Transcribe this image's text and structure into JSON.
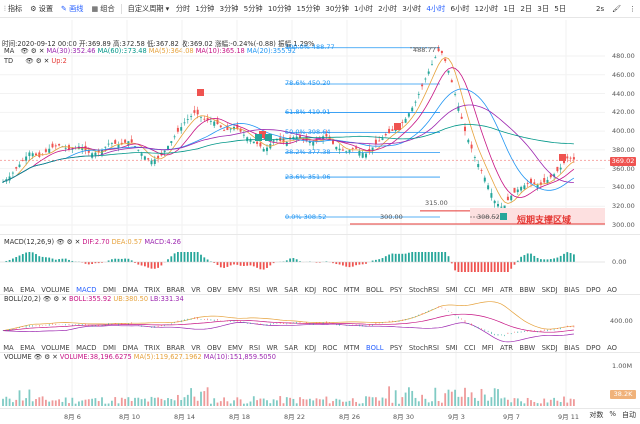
{
  "toolbar": {
    "indicators": "指标",
    "settings": "设置",
    "draw": "画线",
    "combo": "组合",
    "custom_period": "自定义周期",
    "periods": [
      "分时",
      "1分钟",
      "3分钟",
      "5分钟",
      "10分钟",
      "15分钟",
      "30分钟",
      "1小时",
      "2小时",
      "3小时",
      "4小时",
      "6小时",
      "12小时",
      "1日",
      "2日",
      "3日",
      "5日"
    ],
    "active_period": "4小时",
    "right_items": [
      "2s"
    ]
  },
  "main_info": {
    "time": "时间:2020-09-12 00:00",
    "open": "开:369.89",
    "high": "高:372.58",
    "low": "低:367.82",
    "close": "收:369.02",
    "change": "涨幅:-0.24%(-0.88)",
    "amplitude": "振幅:1.29%"
  },
  "ma_legend": {
    "label": "MA",
    "ma30": "MA(30):352.46",
    "ma60": "MA(60):373.48",
    "ma5": "MA(5):364.08",
    "ma10": "MA(10):365.18",
    "ma20": "MA(20):355.92"
  },
  "td_legend": {
    "label": "TD",
    "value": "Up:2"
  },
  "fib_levels": [
    {
      "label": "100.0% 488.77",
      "price": 488.77
    },
    {
      "label": "78.6% 450.20",
      "price": 450.2
    },
    {
      "label": "61.8% 419.91",
      "price": 419.91
    },
    {
      "label": "50.0% 398.64",
      "price": 398.64
    },
    {
      "label": "38.2% 377.38",
      "price": 377.38
    },
    {
      "label": "23.6% 351.06",
      "price": 351.06
    },
    {
      "label": "0.0% 308.52",
      "price": 308.52
    }
  ],
  "annotations": {
    "high_marker": "488.77",
    "low_marker": "308.52",
    "level_300": "300.00",
    "level_315": "315.00",
    "support_zone": "短期支撑区域"
  },
  "price_axis": [
    "480.00",
    "460.00",
    "440.00",
    "420.00",
    "400.00",
    "380.00",
    "360.00",
    "340.00",
    "320.00",
    "300.00"
  ],
  "current_price": "369.02",
  "macd": {
    "label": "MACD(12,26,9)",
    "dif": "DIF:2.70",
    "dea": "DEA:0.57",
    "macd": "MACD:4.26",
    "axis": "0.00"
  },
  "tab_names": [
    "MA",
    "EMA",
    "VOLUME",
    "MACD",
    "DMI",
    "DMA",
    "TRIX",
    "BRAR",
    "VR",
    "OBV",
    "EMV",
    "RSI",
    "WR",
    "SAR",
    "KDJ",
    "ROC",
    "MTM",
    "BOLL",
    "PSY",
    "StochRSI",
    "SMI",
    "CCI",
    "MFI",
    "ATR",
    "BBW",
    "SKDJ",
    "BIAS",
    "DPO",
    "AO"
  ],
  "tabs_row1_active": "MACD",
  "tabs_row2_active": "BOLL",
  "boll": {
    "label": "BOLL(20,2)",
    "boll": "BOLL:355.92",
    "ub": "UB:380.50",
    "lb": "LB:331.34",
    "axis": "400.00"
  },
  "volume": {
    "label": "VOLUME",
    "value": "VOLUME:38,196.6275",
    "ma5": "MA(5):119,627.1962",
    "ma10": "MA(10):151,859.5050",
    "axis": "1.00M",
    "current": "38.2K"
  },
  "dates": [
    "8月 6",
    "8月 10",
    "8月 14",
    "8月 18",
    "8月 22",
    "8月 26",
    "8月 30",
    "9月 3",
    "9月 7",
    "9月 11"
  ],
  "bottom_right": [
    "对数",
    "%",
    "自动"
  ],
  "colors": {
    "up": "#26a69a",
    "down": "#ef5350",
    "accent": "#2962ff",
    "support": "#e53935"
  }
}
